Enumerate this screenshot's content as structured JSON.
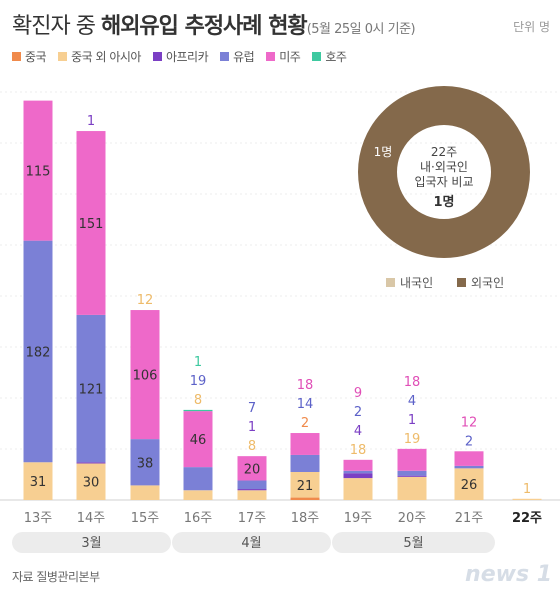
{
  "title": {
    "prefix": "확진자 중 ",
    "main": "해외유입 추정사례 현황",
    "paren": "(5월 25일 0시 기준)"
  },
  "unit": "단위 명",
  "source": "자료  질병관리본부",
  "logo": "news 1",
  "colors": {
    "china": "#f08a4b",
    "china_ex_asia": "#f7cf92",
    "africa": "#7b3fc4",
    "europe": "#7b80d6",
    "americas": "#ee69c9",
    "oceania": "#3ec9a0",
    "domestic": "#d9c7a7",
    "foreign": "#84694b"
  },
  "chart_data": [
    {
      "type": "bar",
      "stacked": true,
      "categories": [
        "13주",
        "14주",
        "15주",
        "16주",
        "17주",
        "18주",
        "19주",
        "20주",
        "21주",
        "22주"
      ],
      "category_emphasis": [
        false,
        false,
        false,
        false,
        false,
        false,
        false,
        false,
        false,
        true
      ],
      "series": [
        {
          "name": "중국",
          "key": "china",
          "values": [
            0,
            0,
            0,
            0,
            0,
            2,
            0,
            0,
            0,
            0
          ],
          "labels": [
            null,
            null,
            null,
            null,
            null,
            "2",
            null,
            null,
            null,
            null
          ]
        },
        {
          "name": "중국 외 아시아",
          "key": "china_ex_asia",
          "values": [
            31,
            30,
            12,
            8,
            8,
            21,
            18,
            19,
            26,
            1
          ],
          "labels": [
            "31",
            "30",
            "12",
            "8",
            "8",
            "21",
            "18",
            "19",
            "26",
            "1"
          ]
        },
        {
          "name": "아프리카",
          "key": "africa",
          "values": [
            0,
            1,
            0,
            0,
            1,
            0,
            4,
            1,
            0,
            0
          ],
          "labels": [
            null,
            "1",
            null,
            null,
            "1",
            null,
            "4",
            "1",
            null,
            null
          ]
        },
        {
          "name": "유럽",
          "key": "europe",
          "values": [
            182,
            121,
            38,
            19,
            7,
            14,
            2,
            4,
            2,
            0
          ],
          "labels": [
            "182",
            "121",
            "38",
            "19",
            "7",
            "14",
            "2",
            "4",
            "2",
            null
          ]
        },
        {
          "name": "미주",
          "key": "americas",
          "values": [
            115,
            151,
            106,
            46,
            20,
            18,
            9,
            18,
            12,
            0
          ],
          "labels": [
            "115",
            "151",
            "106",
            "46",
            "20",
            "18",
            "9",
            "18",
            "12",
            null
          ]
        },
        {
          "name": "호주",
          "key": "oceania",
          "values": [
            0,
            0,
            0,
            1,
            0,
            0,
            0,
            0,
            0,
            0
          ],
          "labels": [
            null,
            null,
            null,
            "1",
            null,
            null,
            null,
            null,
            null,
            null
          ]
        }
      ],
      "month_groups": [
        {
          "label": "3월",
          "from": 0,
          "to": 2
        },
        {
          "label": "4월",
          "from": 3,
          "to": 5
        },
        {
          "label": "5월",
          "from": 6,
          "to": 8
        }
      ],
      "ylim": [
        0,
        340
      ],
      "grid": true
    },
    {
      "type": "pie",
      "subtype": "donut",
      "center_text": [
        "22주",
        "내·외국인",
        "입국자 비교"
      ],
      "center_value": "1명",
      "slices": [
        {
          "name": "내국인",
          "key": "domestic",
          "value": 0
        },
        {
          "name": "외국인",
          "key": "foreign",
          "value": 1
        }
      ],
      "slice_label": "1명",
      "legend_placement": "bottom"
    }
  ]
}
